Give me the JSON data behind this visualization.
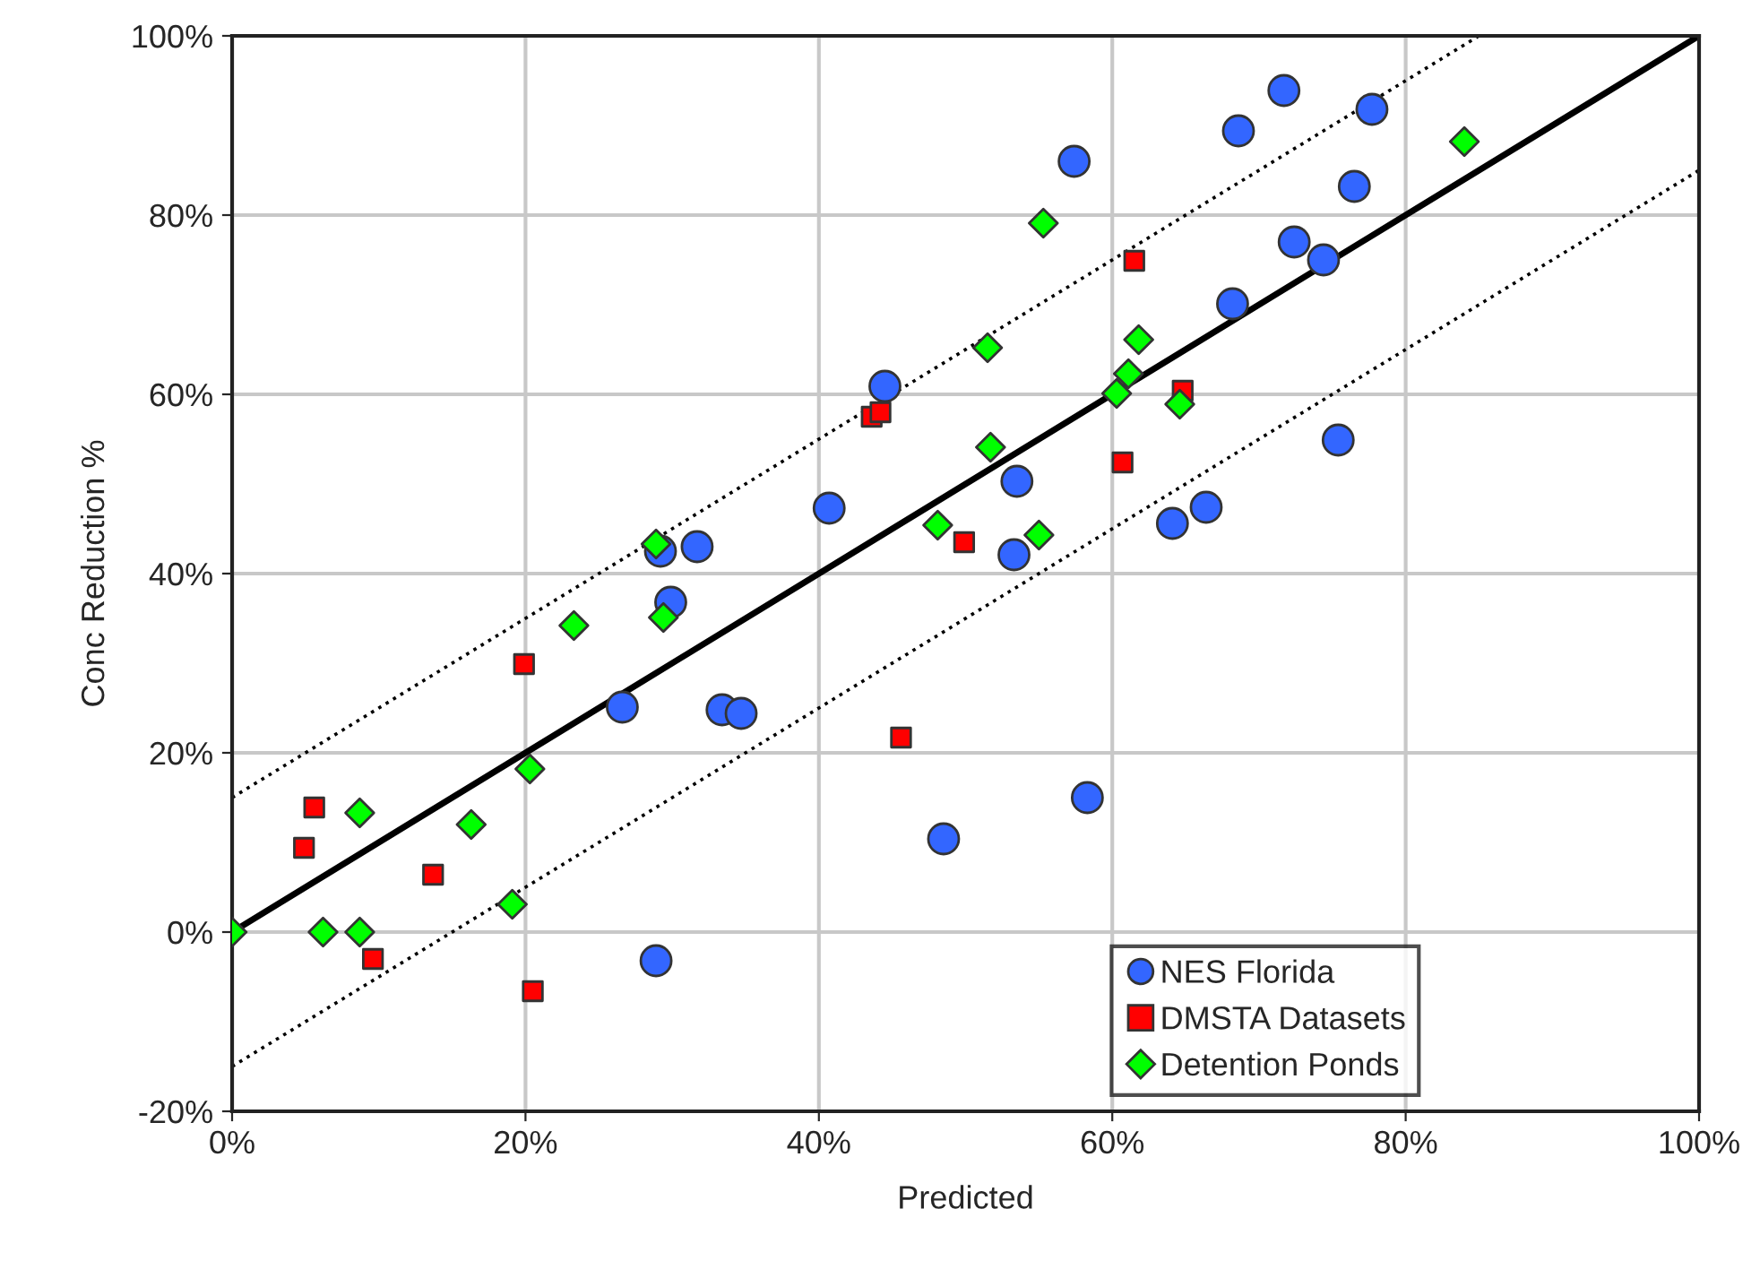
{
  "chart_data": {
    "type": "scatter",
    "xlabel": "Predicted",
    "ylabel": "Conc Reduction %",
    "xlim": [
      0,
      100
    ],
    "ylim": [
      -20,
      100
    ],
    "xticks": [
      {
        "value": 0,
        "label": "0%"
      },
      {
        "value": 20,
        "label": "20%"
      },
      {
        "value": 40,
        "label": "40%"
      },
      {
        "value": 60,
        "label": "60%"
      },
      {
        "value": 80,
        "label": "80%"
      },
      {
        "value": 100,
        "label": "100%"
      }
    ],
    "yticks": [
      {
        "value": -20,
        "label": "-20%"
      },
      {
        "value": 0,
        "label": "0%"
      },
      {
        "value": 20,
        "label": "20%"
      },
      {
        "value": 40,
        "label": "40%"
      },
      {
        "value": 60,
        "label": "60%"
      },
      {
        "value": 80,
        "label": "80%"
      },
      {
        "value": 100,
        "label": "100%"
      }
    ],
    "grid": true,
    "legend": "bottom right",
    "series": [
      {
        "type": "line",
        "color": "#000000",
        "line_style": "solid",
        "marker": "none",
        "x": [
          0,
          100
        ],
        "values": [
          0,
          100
        ]
      },
      {
        "type": "line",
        "color": "#000000",
        "line_style": "dotted",
        "marker": "none",
        "x": [
          0,
          85
        ],
        "values": [
          15,
          100
        ]
      },
      {
        "type": "line",
        "color": "#000000",
        "line_style": "dotted",
        "marker": "none",
        "x": [
          0,
          100
        ],
        "values": [
          -15,
          85
        ]
      },
      {
        "name": "NES Florida",
        "color": "#3366ff",
        "marker": "circle",
        "x": [
          44.5,
          40.7,
          31.7,
          29.2,
          57.4,
          71.7,
          68.6,
          77.7,
          76.5,
          72.4,
          74.4,
          68.2,
          75.4,
          66.4,
          64.1,
          53.5,
          53.3,
          29.9,
          26.6,
          33.4,
          34.7,
          48.5,
          28.9,
          58.3
        ],
        "values": [
          60.9,
          47.3,
          43.0,
          42.5,
          86.0,
          93.9,
          89.4,
          91.8,
          83.2,
          77.0,
          75.0,
          70.1,
          54.9,
          47.4,
          45.6,
          50.3,
          42.1,
          36.8,
          25.1,
          24.8,
          24.4,
          10.4,
          -3.2,
          15.0
        ]
      },
      {
        "name": "DMSTA Datasets",
        "color": "#ff0000",
        "marker": "square",
        "x": [
          43.6,
          44.2,
          61.5,
          64.8,
          60.7,
          49.9,
          19.9,
          45.6,
          5.6,
          4.9,
          13.7,
          9.6,
          20.5
        ],
        "values": [
          57.5,
          58.0,
          74.9,
          60.4,
          52.4,
          43.5,
          29.9,
          21.7,
          13.9,
          9.4,
          6.4,
          -3.0,
          -6.6
        ]
      },
      {
        "name": "Detention Ponds",
        "color": "#00ff00",
        "marker": "diamond",
        "x": [
          84.0,
          55.3,
          51.5,
          61.8,
          61.1,
          60.3,
          64.6,
          51.7,
          48.1,
          55.0,
          28.9,
          23.3,
          29.4,
          20.3,
          8.7,
          16.3,
          19.1,
          0,
          6.2,
          8.7
        ],
        "values": [
          88.2,
          79.1,
          65.2,
          66.1,
          62.3,
          60.1,
          58.9,
          54.1,
          45.4,
          44.3,
          43.3,
          34.2,
          35.1,
          18.2,
          13.3,
          12.0,
          3.1,
          0,
          0,
          0
        ]
      }
    ]
  }
}
